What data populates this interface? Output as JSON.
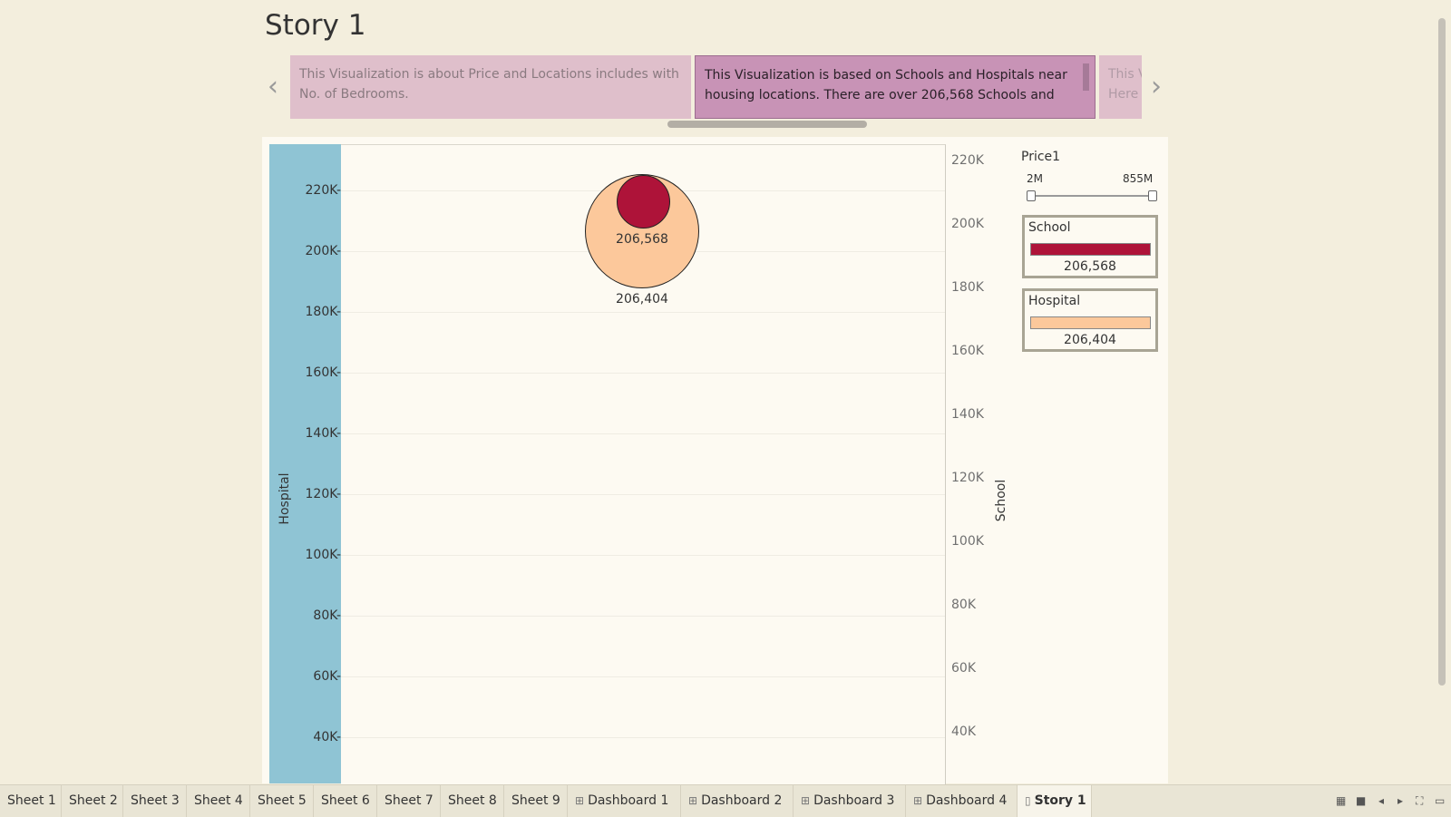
{
  "story": {
    "title": "Story 1"
  },
  "captions": [
    {
      "text": "This Visualization is about Price and Locations includes with No. of Bedrooms."
    },
    {
      "text": "This Visualization is based on Schools and Hospitals near housing locations. There are over 206,568 Schools and"
    },
    {
      "text": "This V\nHere o"
    }
  ],
  "nav": {
    "prev_icon": "chevron-left-icon",
    "next_icon": "chevron-right-icon",
    "prev_glyph": "‹",
    "next_glyph": "›"
  },
  "chart_data": {
    "type": "scatter",
    "title": "",
    "left_axis": {
      "label": "Hospital",
      "ticks": [
        "220K",
        "200K",
        "180K",
        "160K",
        "140K",
        "120K",
        "100K",
        "80K",
        "60K",
        "40K"
      ],
      "range": [
        25000,
        235000
      ]
    },
    "right_axis": {
      "label": "School",
      "ticks": [
        "220K",
        "200K",
        "180K",
        "160K",
        "140K",
        "120K",
        "100K",
        "80K",
        "60K",
        "40K"
      ],
      "range": [
        30000,
        230000
      ]
    },
    "series": [
      {
        "name": "Hospital",
        "value": 206404,
        "label": "206,404",
        "color": "#fcc89b"
      },
      {
        "name": "School",
        "value": 206568,
        "label": "206,568",
        "color": "#ae1339"
      }
    ],
    "grid": true
  },
  "legend": {
    "price": {
      "title": "Price1",
      "min_label": "2M",
      "max_label": "855M"
    },
    "school": {
      "title": "School",
      "value": "206,568",
      "color": "#ae1339"
    },
    "hospital": {
      "title": "Hospital",
      "value": "206,404",
      "color": "#fcc89b"
    }
  },
  "tabs": [
    {
      "label": "Sheet 1",
      "icon": ""
    },
    {
      "label": "Sheet 2",
      "icon": ""
    },
    {
      "label": "Sheet 3",
      "icon": ""
    },
    {
      "label": "Sheet 4",
      "icon": ""
    },
    {
      "label": "Sheet 5",
      "icon": ""
    },
    {
      "label": "Sheet 6",
      "icon": ""
    },
    {
      "label": "Sheet 7",
      "icon": ""
    },
    {
      "label": "Sheet 8",
      "icon": ""
    },
    {
      "label": "Sheet 9",
      "icon": ""
    },
    {
      "label": "Dashboard 1",
      "icon": "dashboard-icon"
    },
    {
      "label": "Dashboard 2",
      "icon": "dashboard-icon"
    },
    {
      "label": "Dashboard 3",
      "icon": "dashboard-icon"
    },
    {
      "label": "Dashboard 4",
      "icon": "dashboard-icon"
    },
    {
      "label": "Story 1",
      "icon": "story-icon",
      "active": true
    }
  ],
  "bottom_icons": [
    "grid-view-icon",
    "single-view-icon",
    "prev-page-icon",
    "next-page-icon",
    "fullscreen-icon",
    "present-icon"
  ]
}
